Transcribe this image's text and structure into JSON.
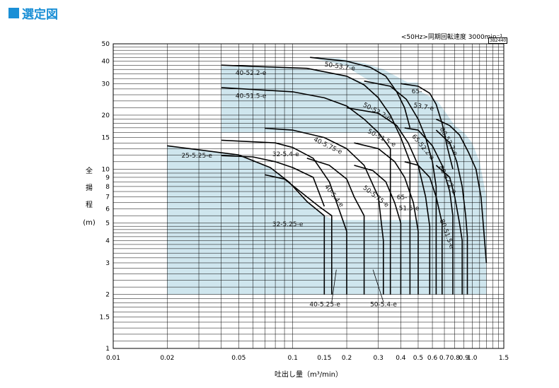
{
  "heading": {
    "title": "選定図",
    "accent": "#1a8fd6"
  },
  "note": "<50Hz>同期回転速度 3000min⁻¹",
  "code": "3B2440",
  "chart_data": {
    "type": "area",
    "xlabel": "吐出し量（m³/min）",
    "ylabel_chars": [
      "全",
      "揚",
      "程",
      "(m)"
    ],
    "xscale": "log",
    "yscale": "log",
    "xlim": [
      0.01,
      1.5
    ],
    "ylim": [
      1,
      50
    ],
    "xticks": [
      {
        "v": 0.01,
        "t": "0.01"
      },
      {
        "v": 0.02,
        "t": "0.02"
      },
      {
        "v": 0.05,
        "t": "0.05"
      },
      {
        "v": 0.1,
        "t": "0.1"
      },
      {
        "v": 0.15,
        "t": "0.15"
      },
      {
        "v": 0.2,
        "t": "0.2"
      },
      {
        "v": 0.3,
        "t": "0.3"
      },
      {
        "v": 0.4,
        "t": "0.4"
      },
      {
        "v": 0.5,
        "t": "0.5"
      },
      {
        "v": 0.6,
        "t": "0.6"
      },
      {
        "v": 0.7,
        "t": "0.7"
      },
      {
        "v": 0.8,
        "t": "0.8"
      },
      {
        "v": 0.9,
        "t": "0.9"
      },
      {
        "v": 1.0,
        "t": "1.0"
      },
      {
        "v": 1.5,
        "t": "1.5"
      }
    ],
    "yticks": [
      {
        "v": 1,
        "t": "1"
      },
      {
        "v": 1.5,
        "t": "1.5"
      },
      {
        "v": 2,
        "t": "2"
      },
      {
        "v": 3,
        "t": "3"
      },
      {
        "v": 4,
        "t": "4"
      },
      {
        "v": 5,
        "t": "5"
      },
      {
        "v": 6,
        "t": "6"
      },
      {
        "v": 7,
        "t": "7"
      },
      {
        "v": 8,
        "t": "8"
      },
      {
        "v": 9,
        "t": "9"
      },
      {
        "v": 10,
        "t": "10"
      },
      {
        "v": 15,
        "t": "15"
      },
      {
        "v": 20,
        "t": "20"
      },
      {
        "v": 30,
        "t": "30"
      },
      {
        "v": 40,
        "t": "40"
      },
      {
        "v": 50,
        "t": "50"
      }
    ],
    "fill_color": "#cfe6ee",
    "grid": true,
    "regions": [
      [
        [
          0.02,
          2
        ],
        [
          0.02,
          13.5
        ],
        [
          0.05,
          12
        ],
        [
          0.06,
          11.3
        ],
        [
          0.075,
          10.2
        ],
        [
          0.085,
          9.4
        ],
        [
          0.095,
          8.5
        ],
        [
          0.1,
          7.8
        ],
        [
          0.12,
          6.6
        ],
        [
          0.15,
          5.5
        ],
        [
          0.17,
          5.2
        ],
        [
          0.5,
          5.2
        ],
        [
          0.5,
          24
        ],
        [
          0.4,
          26.5
        ],
        [
          0.3,
          29
        ],
        [
          0.22,
          35
        ],
        [
          0.2,
          37.5
        ],
        [
          0.125,
          42
        ],
        [
          0.18,
          41.5
        ],
        [
          0.25,
          39
        ],
        [
          0.32,
          36
        ],
        [
          0.45,
          30
        ],
        [
          0.5,
          27.5
        ],
        [
          0.6,
          25
        ],
        [
          0.65,
          23.5
        ],
        [
          0.8,
          17.5
        ],
        [
          0.9,
          16
        ],
        [
          1.0,
          14
        ],
        [
          1.1,
          11
        ],
        [
          1.2,
          7
        ],
        [
          1.2,
          2
        ]
      ],
      [
        [
          0.04,
          16
        ],
        [
          0.04,
          37.5
        ],
        [
          0.08,
          37
        ],
        [
          0.12,
          36
        ],
        [
          0.18,
          34
        ],
        [
          0.25,
          30.5
        ],
        [
          0.5,
          30.5
        ],
        [
          0.5,
          16
        ]
      ]
    ],
    "series": [
      {
        "name": "25-5.25-e",
        "points": [
          [
            0.02,
            13.5
          ],
          [
            0.05,
            12
          ],
          [
            0.075,
            10.2
          ],
          [
            0.095,
            8.5
          ],
          [
            0.12,
            6.6
          ],
          [
            0.15,
            5.5
          ],
          [
            0.15,
            2
          ]
        ]
      },
      {
        "name": "32-5.4-e",
        "points": [
          [
            0.04,
            14.5
          ],
          [
            0.08,
            14
          ],
          [
            0.1,
            13.2
          ],
          [
            0.13,
            11.5
          ],
          [
            0.16,
            8.5
          ],
          [
            0.2,
            4.5
          ],
          [
            0.2,
            2
          ]
        ]
      },
      {
        "name": "32-5.25-e",
        "points": [
          [
            0.07,
            9.3
          ],
          [
            0.09,
            8.8
          ],
          [
            0.11,
            7.5
          ],
          [
            0.14,
            6.2
          ],
          [
            0.165,
            5.5
          ],
          [
            0.165,
            2
          ]
        ]
      },
      {
        "name": "40-5.25-e",
        "points": [
          [
            0.04,
            11.9
          ],
          [
            0.06,
            11.7
          ],
          [
            0.08,
            11
          ],
          [
            0.1,
            10.2
          ],
          [
            0.13,
            9
          ],
          [
            0.15,
            6.2
          ]
        ]
      },
      {
        "name": "40-5.4-e",
        "points": [
          [
            0.12,
            11.5
          ],
          [
            0.16,
            10.5
          ],
          [
            0.2,
            8.8
          ],
          [
            0.22,
            7
          ],
          [
            0.25,
            5.5
          ],
          [
            0.25,
            2
          ]
        ]
      },
      {
        "name": "40-5.75-e",
        "points": [
          [
            0.07,
            16.9
          ],
          [
            0.1,
            16.5
          ],
          [
            0.15,
            15
          ],
          [
            0.2,
            13
          ],
          [
            0.25,
            10.5
          ],
          [
            0.3,
            7
          ],
          [
            0.32,
            4
          ],
          [
            0.32,
            2
          ]
        ]
      },
      {
        "name": "40-51.5-e",
        "points": [
          [
            0.04,
            28.5
          ],
          [
            0.1,
            27
          ],
          [
            0.15,
            25
          ],
          [
            0.2,
            22.5
          ],
          [
            0.25,
            19
          ],
          [
            0.3,
            16
          ],
          [
            0.35,
            13
          ],
          [
            0.35,
            2
          ]
        ]
      },
      {
        "name": "40-52.2-e",
        "points": [
          [
            0.04,
            38
          ],
          [
            0.12,
            36.5
          ],
          [
            0.2,
            33
          ],
          [
            0.25,
            29.5
          ],
          [
            0.3,
            25
          ],
          [
            0.35,
            20
          ],
          [
            0.4,
            15
          ],
          [
            0.45,
            11
          ],
          [
            0.45,
            2
          ]
        ]
      },
      {
        "name": "50-5.4-e",
        "points": [
          [
            0.22,
            10.5
          ],
          [
            0.28,
            9.8
          ],
          [
            0.33,
            8.5
          ],
          [
            0.37,
            6.5
          ],
          [
            0.4,
            5
          ],
          [
            0.4,
            2
          ]
        ]
      },
      {
        "name": "50-5.75-e",
        "points": [
          [
            0.22,
            14
          ],
          [
            0.3,
            13
          ],
          [
            0.37,
            11
          ],
          [
            0.42,
            9
          ],
          [
            0.47,
            6.5
          ],
          [
            0.5,
            4.5
          ],
          [
            0.5,
            2
          ]
        ]
      },
      {
        "name": "50-51.5-e",
        "points": [
          [
            0.2,
            22
          ],
          [
            0.3,
            20.5
          ],
          [
            0.38,
            17.5
          ],
          [
            0.44,
            14
          ],
          [
            0.5,
            10.5
          ],
          [
            0.55,
            7
          ],
          [
            0.58,
            4.8
          ],
          [
            0.58,
            2
          ]
        ]
      },
      {
        "name": "50-52.2-e",
        "points": [
          [
            0.25,
            31
          ],
          [
            0.35,
            29
          ],
          [
            0.43,
            24.5
          ],
          [
            0.5,
            19
          ],
          [
            0.55,
            15
          ],
          [
            0.6,
            11
          ],
          [
            0.63,
            8
          ],
          [
            0.63,
            2
          ]
        ]
      },
      {
        "name": "50-53.7-e",
        "points": [
          [
            0.125,
            42
          ],
          [
            0.2,
            40
          ],
          [
            0.27,
            37
          ],
          [
            0.33,
            33
          ],
          [
            0.38,
            27
          ],
          [
            0.42,
            22
          ],
          [
            0.45,
            17
          ]
        ]
      },
      {
        "name": "65-51.5-e",
        "points": [
          [
            0.42,
            11
          ],
          [
            0.5,
            10.5
          ],
          [
            0.58,
            9
          ],
          [
            0.63,
            7
          ],
          [
            0.68,
            5
          ],
          [
            0.68,
            2
          ]
        ]
      },
      {
        "name": "65-52.2-e",
        "points": [
          [
            0.42,
            17
          ],
          [
            0.5,
            16.5
          ],
          [
            0.6,
            13.5
          ],
          [
            0.68,
            10.5
          ],
          [
            0.75,
            7.5
          ],
          [
            0.78,
            5.5
          ],
          [
            0.78,
            2
          ]
        ]
      },
      {
        "name": "65-53.7-e",
        "points": [
          [
            0.4,
            30
          ],
          [
            0.5,
            29
          ],
          [
            0.58,
            26.5
          ],
          [
            0.63,
            23
          ],
          [
            0.68,
            18
          ],
          [
            0.73,
            13
          ],
          [
            0.78,
            10
          ]
        ]
      },
      {
        "name": "80-51.5-e",
        "points": [
          [
            0.63,
            10.5
          ],
          [
            0.75,
            9
          ],
          [
            0.8,
            7
          ],
          [
            0.85,
            5
          ],
          [
            0.88,
            4
          ],
          [
            0.88,
            2
          ]
        ]
      },
      {
        "name": "80-52.2-e",
        "points": [
          [
            0.63,
            16.5
          ],
          [
            0.75,
            14
          ],
          [
            0.82,
            11
          ],
          [
            0.88,
            8
          ],
          [
            0.92,
            5.5
          ],
          [
            0.94,
            4.2
          ],
          [
            0.94,
            2
          ]
        ]
      },
      {
        "name": "80-53.7-e",
        "points": [
          [
            0.63,
            19
          ],
          [
            0.75,
            17.5
          ],
          [
            0.85,
            15.5
          ],
          [
            0.95,
            12.5
          ],
          [
            1.05,
            10
          ],
          [
            1.12,
            7
          ],
          [
            1.2,
            3
          ]
        ]
      }
    ],
    "labels": [
      {
        "t": "50-53.7-e",
        "x": 0.15,
        "y": 37.5,
        "r": 8
      },
      {
        "t": "40-52.2-e",
        "x": 0.048,
        "y": 33.5,
        "r": 0
      },
      {
        "t": "40-51.5-e",
        "x": 0.048,
        "y": 25,
        "r": 0
      },
      {
        "t": "65-",
        "x": 0.46,
        "y": 26.5,
        "r": 0
      },
      {
        "t": "53.7-e",
        "x": 0.47,
        "y": 22.2,
        "r": 10
      },
      {
        "t": "50-52.2-e",
        "x": 0.245,
        "y": 22.5,
        "r": 28
      },
      {
        "t": "80-53.7-e",
        "x": 0.66,
        "y": 16.8,
        "r": 62
      },
      {
        "t": "50-51.5-e",
        "x": 0.26,
        "y": 16,
        "r": 28
      },
      {
        "t": "65-52.2-e",
        "x": 0.46,
        "y": 15.2,
        "r": 50
      },
      {
        "t": "40-5.75-e",
        "x": 0.13,
        "y": 14.4,
        "r": 26
      },
      {
        "t": "25-5.25-e",
        "x": 0.024,
        "y": 11.6,
        "r": 0
      },
      {
        "t": "32-5.4-e",
        "x": 0.077,
        "y": 11.8,
        "r": 0
      },
      {
        "t": "80-52.2-e",
        "x": 0.65,
        "y": 10.3,
        "r": 62
      },
      {
        "t": "40-5.4-e",
        "x": 0.15,
        "y": 8.0,
        "r": 52
      },
      {
        "t": "50-5.75-e",
        "x": 0.245,
        "y": 7.8,
        "r": 38
      },
      {
        "t": "65-",
        "x": 0.38,
        "y": 6.8,
        "r": 0
      },
      {
        "t": "51.5-e",
        "x": 0.39,
        "y": 5.9,
        "r": 0
      },
      {
        "t": "80-51.5-e",
        "x": 0.66,
        "y": 5.2,
        "r": 70
      },
      {
        "t": "32-5.25-e",
        "x": 0.077,
        "y": 4.8,
        "r": 0
      },
      {
        "t": "40-5.25-e",
        "x": 0.124,
        "y": 1.72,
        "r": 0
      },
      {
        "t": "50-5.4-e",
        "x": 0.27,
        "y": 1.72,
        "r": 0
      }
    ],
    "leaders": [
      {
        "label": "40-5.25-e",
        "from": [
          0.165,
          1.82
        ],
        "to": [
          0.175,
          2.75
        ]
      },
      {
        "label": "50-5.4-e",
        "from": [
          0.32,
          1.82
        ],
        "to": [
          0.28,
          2.75
        ]
      }
    ]
  }
}
